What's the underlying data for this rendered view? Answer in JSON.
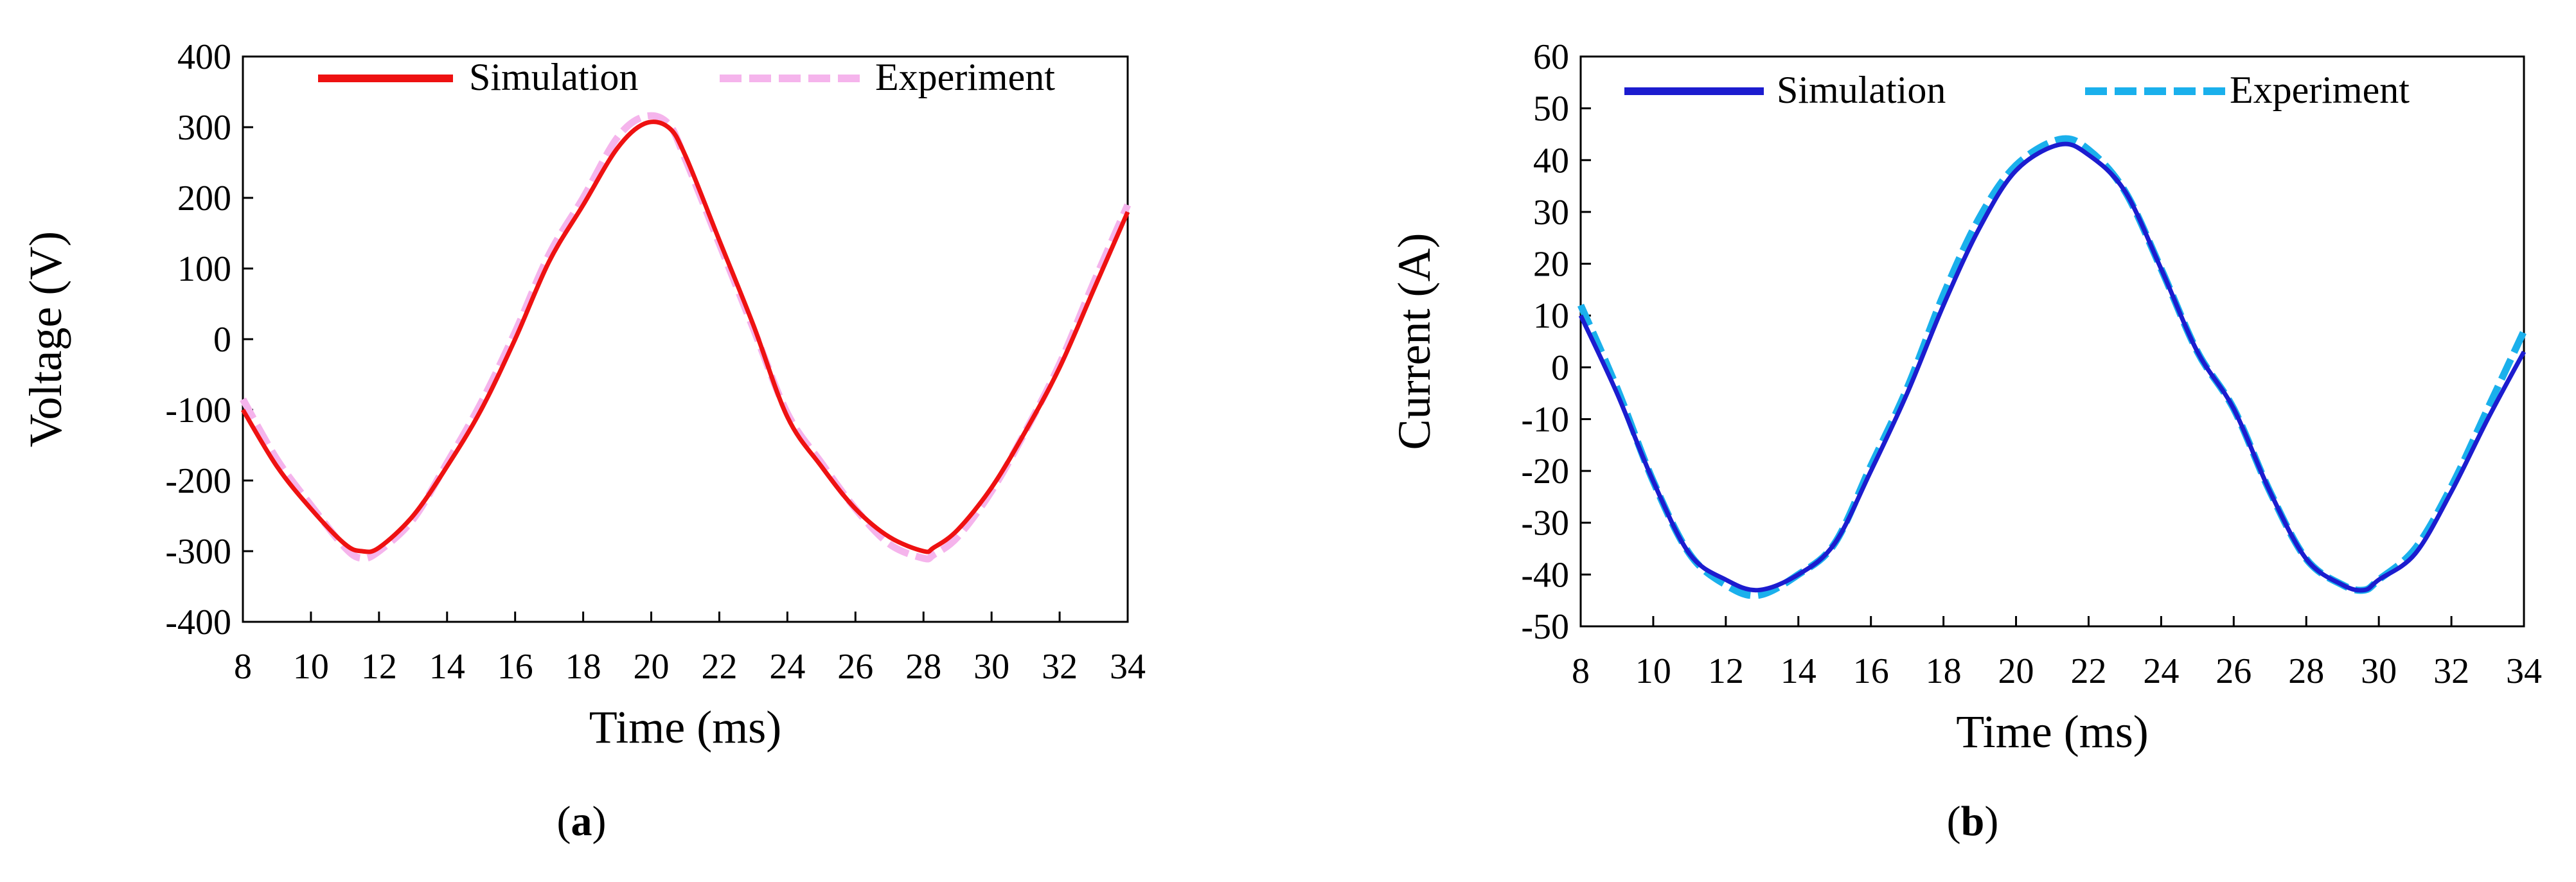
{
  "chart_data": [
    {
      "type": "line",
      "panel": "a",
      "caption_letter": "a",
      "title": "",
      "xlabel": "Time (ms)",
      "ylabel": "Voltage (V)",
      "xlim": [
        8,
        34
      ],
      "ylim": [
        -400,
        400
      ],
      "xticks": [
        8,
        10,
        12,
        14,
        16,
        18,
        20,
        22,
        24,
        26,
        28,
        30,
        32,
        34
      ],
      "yticks": [
        -400,
        -300,
        -200,
        -100,
        0,
        100,
        200,
        300,
        400
      ],
      "legend": {
        "placement": "top",
        "entries": [
          "Simulation",
          "Experiment"
        ]
      },
      "series": [
        {
          "name": "Simulation",
          "color": "#ee1111",
          "style": "solid",
          "x": [
            8,
            9,
            10,
            11,
            11.5,
            12,
            13,
            14,
            15,
            16,
            17,
            18,
            19,
            19.8,
            20.5,
            21,
            22,
            23,
            24,
            25,
            26,
            27,
            28,
            28.3,
            29,
            30,
            31,
            32,
            33,
            34
          ],
          "y": [
            -100,
            -180,
            -240,
            -290,
            -300,
            -295,
            -250,
            -180,
            -100,
            0,
            110,
            190,
            270,
            305,
            300,
            260,
            140,
            20,
            -110,
            -180,
            -240,
            -280,
            -300,
            -295,
            -270,
            -210,
            -130,
            -40,
            70,
            180
          ]
        },
        {
          "name": "Experiment",
          "color": "#f5b4ec",
          "style": "dashed",
          "x": [
            8,
            9,
            10,
            11,
            11.5,
            12,
            13,
            14,
            15,
            16,
            17,
            18,
            19,
            19.8,
            20.5,
            21,
            22,
            23,
            24,
            25,
            26,
            27,
            28,
            28.3,
            29,
            30,
            31,
            32,
            33,
            34
          ],
          "y": [
            -85,
            -170,
            -235,
            -295,
            -310,
            -300,
            -255,
            -175,
            -90,
            10,
            120,
            200,
            285,
            315,
            305,
            255,
            135,
            15,
            -105,
            -175,
            -240,
            -290,
            -310,
            -305,
            -280,
            -215,
            -130,
            -35,
            80,
            190
          ]
        }
      ]
    },
    {
      "type": "line",
      "panel": "b",
      "caption_letter": "b",
      "title": "",
      "xlabel": "Time (ms)",
      "ylabel": "Current (A)",
      "xlim": [
        8,
        34
      ],
      "ylim": [
        -50,
        60
      ],
      "xticks": [
        8,
        10,
        12,
        14,
        16,
        18,
        20,
        22,
        24,
        26,
        28,
        30,
        32,
        34
      ],
      "yticks": [
        -50,
        -40,
        -30,
        -20,
        -10,
        0,
        10,
        20,
        30,
        40,
        50,
        60
      ],
      "legend": {
        "placement": "top",
        "entries": [
          "Simulation",
          "Experiment"
        ]
      },
      "series": [
        {
          "name": "Simulation",
          "color": "#1c1ccf",
          "style": "solid",
          "x": [
            8,
            9,
            10,
            11,
            12,
            12.9,
            14,
            15,
            16,
            17,
            18,
            19,
            20,
            21.2,
            22,
            23,
            24,
            25,
            26,
            27,
            28,
            29,
            29.6,
            30,
            31,
            32,
            33,
            34
          ],
          "y": [
            10,
            -5,
            -22,
            -36,
            -41,
            -43,
            -40,
            -34,
            -20,
            -5,
            12,
            27,
            38,
            43,
            41,
            34,
            19,
            3,
            -8,
            -24,
            -37,
            -42,
            -43,
            -41,
            -36,
            -24,
            -10,
            3
          ]
        },
        {
          "name": "Experiment",
          "color": "#1ab0ec",
          "style": "dashed",
          "x": [
            8,
            9,
            10,
            11,
            12,
            12.9,
            14,
            15,
            16,
            17,
            18,
            19,
            20,
            21.2,
            22,
            23,
            24,
            25,
            26,
            27,
            28,
            29,
            29.6,
            30,
            31,
            32,
            33,
            34
          ],
          "y": [
            12,
            -4,
            -22,
            -36,
            -42,
            -44,
            -40,
            -34,
            -19,
            -4,
            14,
            29,
            39,
            44,
            42,
            34,
            19,
            3,
            -8,
            -24,
            -37,
            -42,
            -43,
            -41,
            -35,
            -23,
            -8,
            7
          ]
        }
      ]
    }
  ]
}
